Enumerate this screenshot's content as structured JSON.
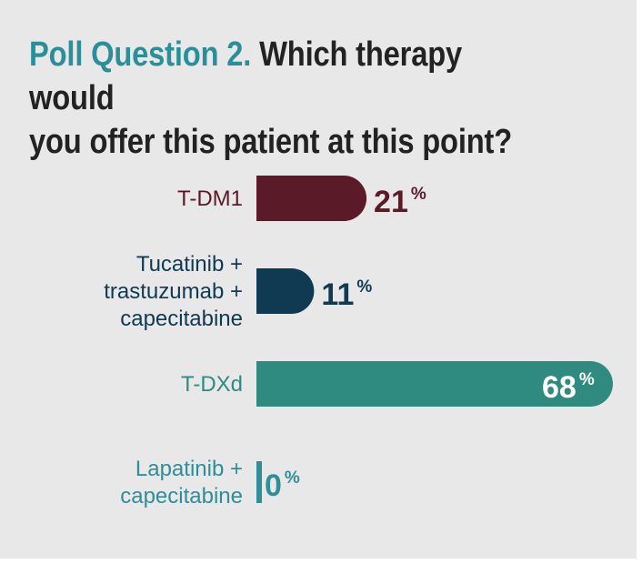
{
  "title": {
    "lead": "Poll Question 2.",
    "question_line1": "Which therapy would",
    "question_line2": "you offer this patient at this point?"
  },
  "chart_data": {
    "type": "bar",
    "orientation": "horizontal",
    "title": "Poll Question 2. Which therapy would you offer this patient at this point?",
    "categories": [
      [
        "T-DM1"
      ],
      [
        "Tucatinib +",
        "trastuzumab +",
        "capecitabine"
      ],
      [
        "T-DXd"
      ],
      [
        "Lapatinib +",
        "capecitabine"
      ]
    ],
    "values": [
      21,
      11,
      68,
      0
    ],
    "unit": "%",
    "colors": [
      "#5a1a28",
      "#0f3a52",
      "#2f8a80",
      "#2e8f98"
    ],
    "label_colors": [
      "#5a1a28",
      "#0f3a52",
      "#2f8a80",
      "#2e8f98"
    ],
    "value_label_colors": [
      "#5a1a28",
      "#0f3a52",
      "#ffffff",
      "#2e8f98"
    ],
    "xlim": [
      0,
      68
    ],
    "grid": false,
    "legend": "none"
  }
}
